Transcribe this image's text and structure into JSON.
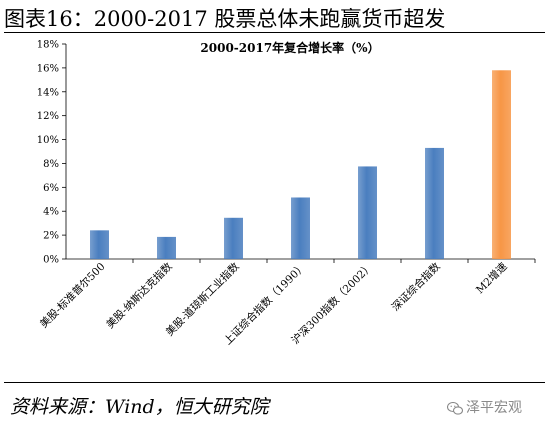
{
  "figure": {
    "title": "图表16：2000-2017 股票总体未跑赢货币超发",
    "source": "资料来源：Wind，恒大研究院",
    "watermark": "泽平宏观",
    "watermark_icon": "wechat-icon"
  },
  "colors": {
    "blue_bar": "#4a7ebf",
    "orange_bar": "#f79646"
  },
  "chart_data": {
    "type": "bar",
    "title": "2000-2017年复合增长率（%）",
    "categories": [
      "美股-标准普尔500",
      "美股-纳斯达克指数",
      "美股-道琼斯工业指数",
      "上证综合指数（1990）",
      "沪深300指数（2002）",
      "深证综合指数",
      "M2增速"
    ],
    "values": [
      2.4,
      1.85,
      3.45,
      5.15,
      7.75,
      9.3,
      15.8
    ],
    "bar_colors": [
      "#4a7ebf",
      "#4a7ebf",
      "#4a7ebf",
      "#4a7ebf",
      "#4a7ebf",
      "#4a7ebf",
      "#f79646"
    ],
    "ylim": [
      0,
      18
    ],
    "yticks": [
      0,
      2,
      4,
      6,
      8,
      10,
      12,
      14,
      16,
      18
    ],
    "ytick_labels": [
      "0%",
      "2%",
      "4%",
      "6%",
      "8%",
      "10%",
      "12%",
      "14%",
      "16%",
      "18%"
    ],
    "grid": false,
    "legend": "none"
  }
}
